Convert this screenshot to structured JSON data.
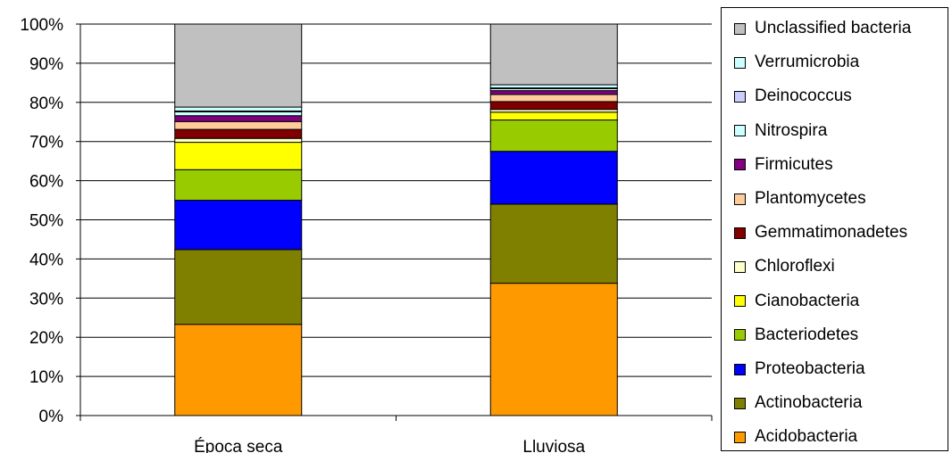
{
  "chart_data": {
    "type": "bar",
    "stacked": true,
    "normalized_percent": true,
    "categories": [
      "Época seca",
      "Lluviosa"
    ],
    "y_ticks": [
      "0%",
      "10%",
      "20%",
      "30%",
      "40%",
      "50%",
      "60%",
      "70%",
      "80%",
      "90%",
      "100%"
    ],
    "ylim": [
      0,
      100
    ],
    "grid": true,
    "legend_position": "right",
    "series": [
      {
        "name": "Acidobacteria",
        "color": "#FF9900",
        "values": [
          23.3,
          33.8
        ]
      },
      {
        "name": "Actinobacteria",
        "color": "#808000",
        "values": [
          19.1,
          20.2
        ]
      },
      {
        "name": "Proteobacteria",
        "color": "#0000FF",
        "values": [
          12.6,
          13.5
        ]
      },
      {
        "name": "Bacteriodetes",
        "color": "#99CC00",
        "values": [
          7.8,
          8.0
        ]
      },
      {
        "name": "Cianobacteria",
        "color": "#FFFF00",
        "values": [
          7.0,
          2.0
        ]
      },
      {
        "name": "Chloroflexi",
        "color": "#FFFFCC",
        "values": [
          1.0,
          0.7
        ]
      },
      {
        "name": "Gemmatimonadetes",
        "color": "#800000",
        "values": [
          2.3,
          2.0
        ]
      },
      {
        "name": "Plantomycetes",
        "color": "#FFCC99",
        "values": [
          2.0,
          1.8
        ]
      },
      {
        "name": "Firmicutes",
        "color": "#800080",
        "values": [
          1.5,
          1.0
        ]
      },
      {
        "name": "Nitrospira",
        "color": "#CCFFFF",
        "values": [
          1.0,
          0.5
        ]
      },
      {
        "name": "Deinococcus",
        "color": "#CCCCFF",
        "values": [
          0.2,
          0.2
        ]
      },
      {
        "name": "Verrumicrobia",
        "color": "#CCFFFF",
        "values": [
          1.0,
          0.8
        ]
      },
      {
        "name": "Unclassified bacteria",
        "color": "#C0C0C0",
        "values": [
          21.2,
          15.5
        ]
      }
    ]
  }
}
